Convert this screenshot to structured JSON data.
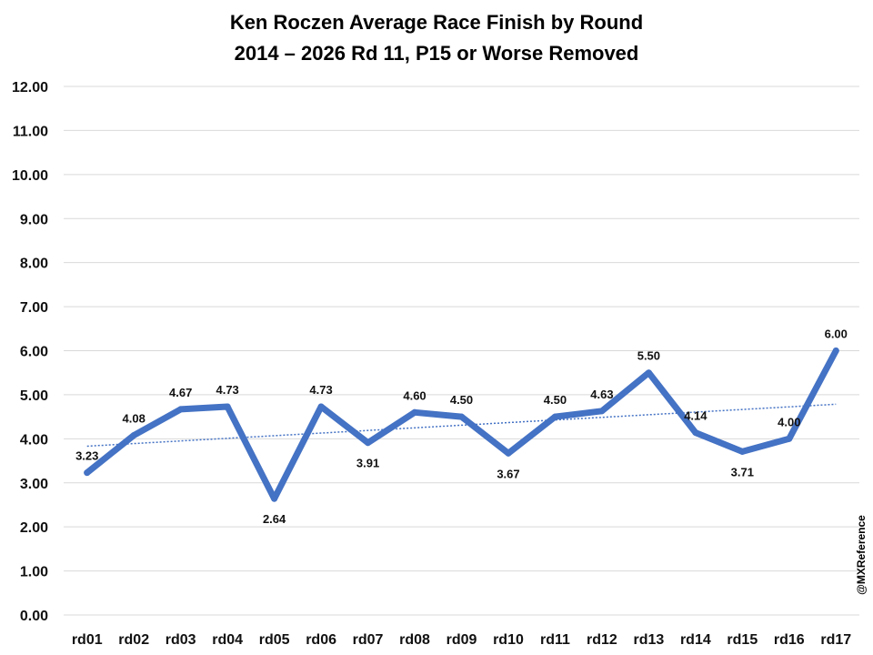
{
  "chart_data": {
    "type": "line",
    "title": "Ken Roczen Average Race Finish by Round",
    "subtitle": "2014 – 2026 Rd 11, P15 or Worse Removed",
    "categories": [
      "rd01",
      "rd02",
      "rd03",
      "rd04",
      "rd05",
      "rd06",
      "rd07",
      "rd08",
      "rd09",
      "rd10",
      "rd11",
      "rd12",
      "rd13",
      "rd14",
      "rd15",
      "rd16",
      "rd17"
    ],
    "series": [
      {
        "values": [
          3.23,
          4.08,
          4.67,
          4.73,
          2.64,
          4.73,
          3.91,
          4.6,
          4.5,
          3.67,
          4.5,
          4.63,
          5.5,
          4.14,
          3.71,
          4.0,
          6.0
        ],
        "labels": [
          "3.23",
          "4.08",
          "4.67",
          "4.73",
          "2.64",
          "4.73",
          "3.91",
          "4.60",
          "4.50",
          "3.67",
          "4.50",
          "4.63",
          "5.50",
          "4.14",
          "3.71",
          "4.00",
          "6.00"
        ],
        "color": "#4472C4"
      }
    ],
    "trendline": {
      "type": "linear",
      "style": "dotted",
      "color": "#4472C4"
    },
    "ylim": [
      0,
      12
    ],
    "yticks": [
      "0.00",
      "1.00",
      "2.00",
      "3.00",
      "4.00",
      "5.00",
      "6.00",
      "7.00",
      "8.00",
      "9.00",
      "10.00",
      "11.00",
      "12.00"
    ],
    "grid": true,
    "xlabel": "",
    "ylabel": ""
  },
  "watermark": "@MXReference"
}
